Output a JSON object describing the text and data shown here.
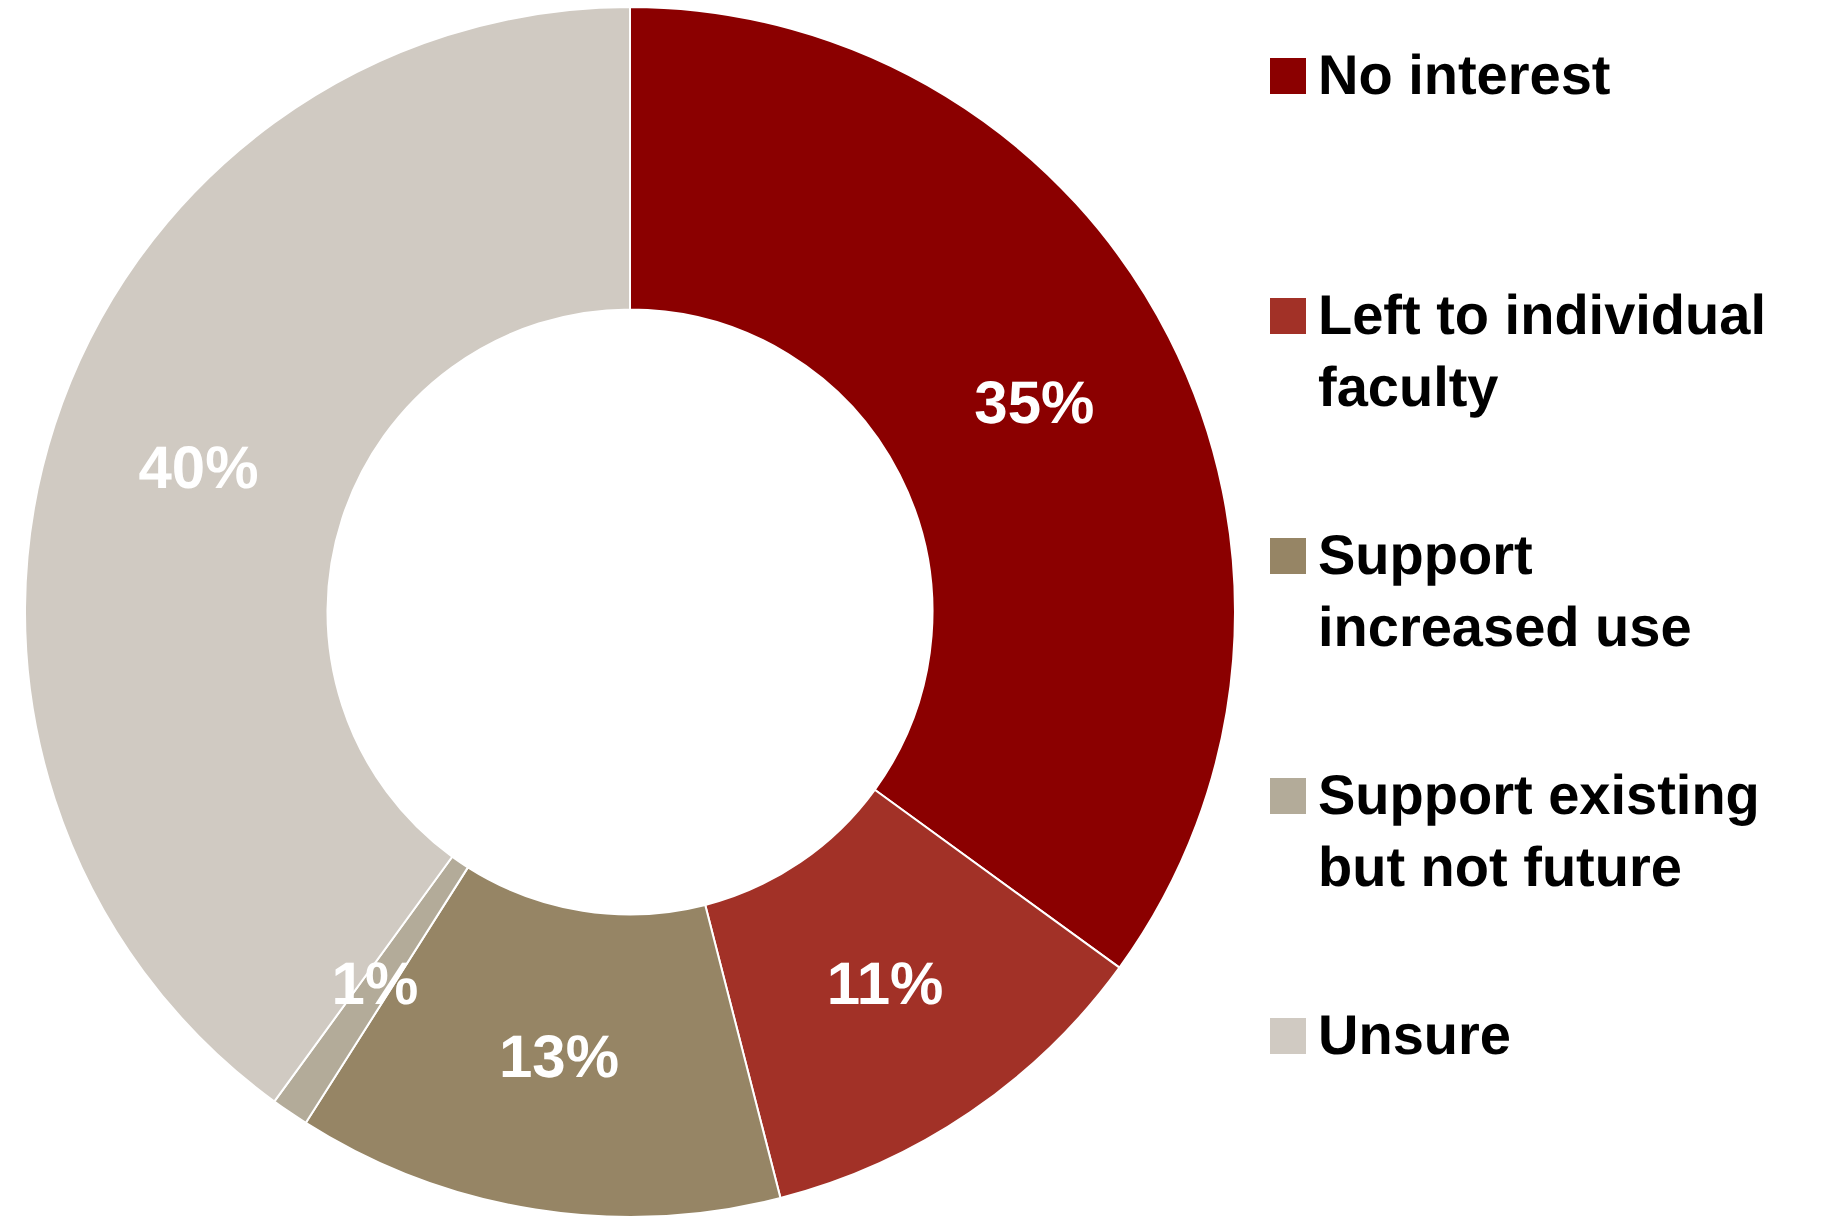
{
  "chart_data": {
    "type": "donut",
    "categories": [
      "No interest",
      "Left to individual faculty",
      "Support increased use",
      "Support existing but not future",
      "Unsure"
    ],
    "values": [
      35,
      11,
      13,
      1,
      40
    ],
    "colors": [
      "#8b0000",
      "#a23127",
      "#968565",
      "#b3ab99",
      "#d0cac2"
    ],
    "value_labels": [
      "35%",
      "11%",
      "13%",
      "1%",
      "40%"
    ],
    "legend": "right"
  }
}
